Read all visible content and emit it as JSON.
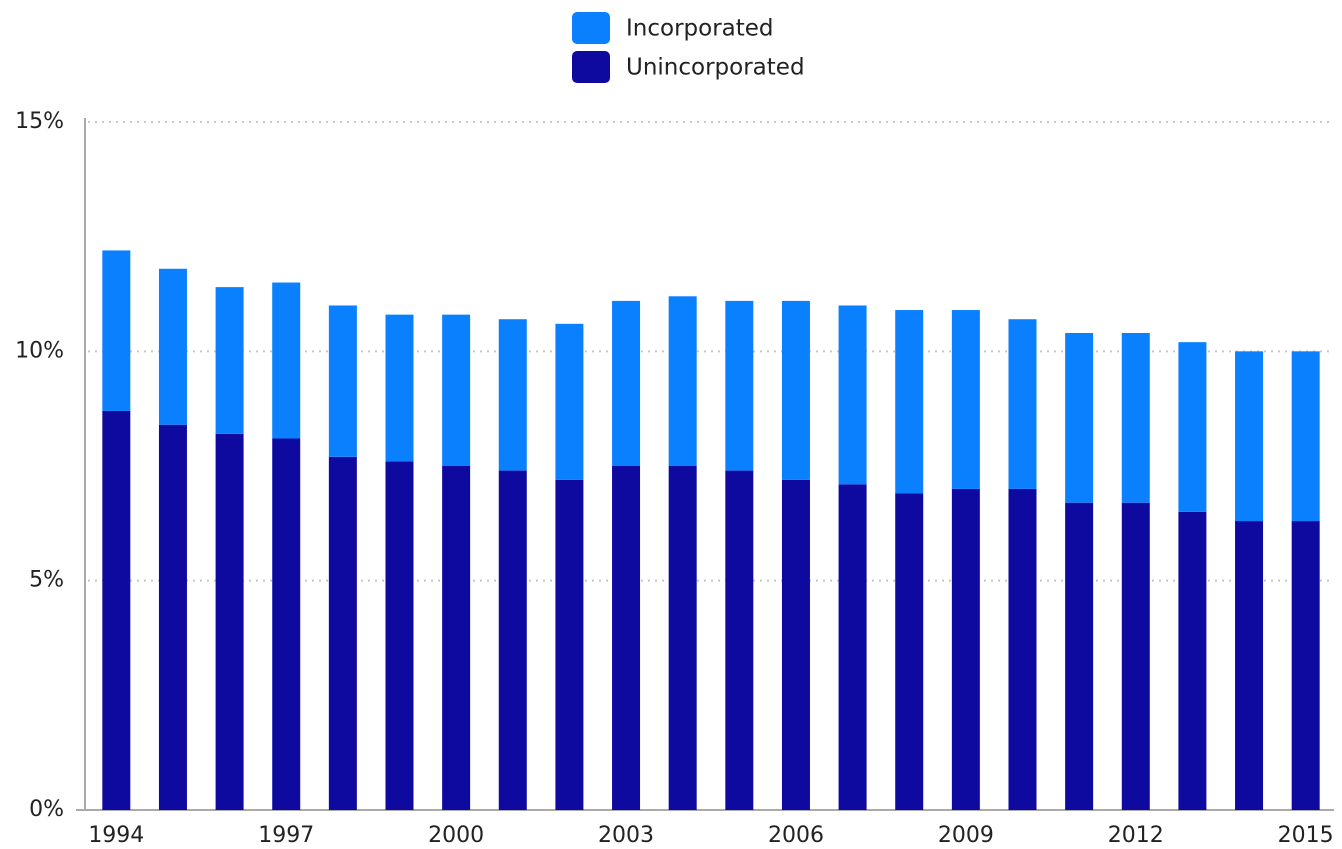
{
  "chart_data": {
    "type": "stacked-bar",
    "categories": [
      "1994",
      null,
      null,
      "1997",
      null,
      null,
      "2000",
      null,
      null,
      "2003",
      null,
      null,
      "2006",
      null,
      null,
      "2009",
      null,
      null,
      "2012",
      null,
      null,
      "2015"
    ],
    "series": [
      {
        "name": "Unincorporated",
        "color": "#0e0aa0",
        "values": [
          8.7,
          8.4,
          8.2,
          8.1,
          7.7,
          7.6,
          7.5,
          7.4,
          7.2,
          7.5,
          7.5,
          7.4,
          7.2,
          7.1,
          6.9,
          7.0,
          7.0,
          6.7,
          6.7,
          6.5,
          6.3,
          6.3
        ]
      },
      {
        "name": "Incorporated",
        "color": "#0a80ff",
        "values": [
          3.5,
          3.4,
          3.2,
          3.4,
          3.3,
          3.2,
          3.3,
          3.3,
          3.4,
          3.6,
          3.7,
          3.7,
          3.9,
          3.9,
          4.0,
          3.9,
          3.7,
          3.7,
          3.7,
          3.7,
          3.7,
          3.7
        ]
      }
    ],
    "ylim": [
      0,
      15
    ],
    "yticks": [
      {
        "value": 0,
        "label": "0%"
      },
      {
        "value": 5,
        "label": "5%"
      },
      {
        "value": 10,
        "label": "10%"
      },
      {
        "value": 15,
        "label": "15%"
      }
    ],
    "grid": true
  }
}
